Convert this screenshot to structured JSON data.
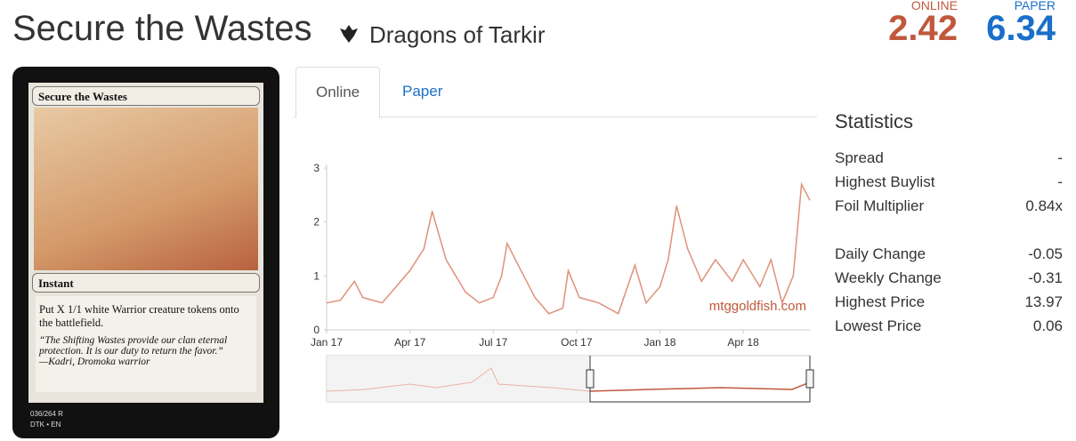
{
  "header": {
    "title": "Secure the Wastes",
    "set": "Dragons of Tarkir",
    "online_label": "ONLINE",
    "online_price": "2.42",
    "paper_label": "PAPER",
    "paper_price": "6.34"
  },
  "card": {
    "name": "Secure the Wastes",
    "type_line": "Instant",
    "rules": "Put X 1/1 white Warrior creature tokens onto the battlefield.",
    "flavor": "“The Shifting Wastes provide our clan eternal protection. It is our duty to return the favor.”",
    "attribution": "—Kadri, Dromoka warrior",
    "collector": "036/264 R",
    "set_line": "DTK • EN"
  },
  "tabs": [
    "Online",
    "Paper"
  ],
  "chart_data": {
    "type": "line",
    "annotation": "mtggoldfish.com",
    "color": "#e0907a",
    "x": [
      0,
      0.5,
      1,
      1.3,
      2,
      2.5,
      3,
      3.5,
      3.8,
      4.3,
      5,
      5.5,
      6,
      6.3,
      6.5,
      7,
      7.5,
      8,
      8.5,
      8.7,
      9.1,
      9.8,
      10.5,
      11.1,
      11.5,
      12,
      12.3,
      12.6,
      13,
      13.5,
      14,
      14.6,
      15,
      15.6,
      16,
      16.4,
      16.8,
      17.1,
      17.4
    ],
    "values": [
      0.5,
      0.55,
      0.9,
      0.6,
      0.5,
      0.8,
      1.1,
      1.5,
      2.2,
      1.3,
      0.7,
      0.5,
      0.6,
      1.0,
      1.6,
      1.1,
      0.6,
      0.3,
      0.4,
      1.1,
      0.6,
      0.5,
      0.3,
      1.2,
      0.5,
      0.8,
      1.3,
      2.3,
      1.5,
      0.9,
      1.3,
      0.9,
      1.3,
      0.8,
      1.3,
      0.5,
      1.0,
      2.7,
      2.4
    ],
    "xlim": [
      0,
      17.4
    ],
    "xticks": [
      {
        "value": 0,
        "label": "Jan 17"
      },
      {
        "value": 3,
        "label": "Apr 17"
      },
      {
        "value": 6,
        "label": "Jul 17"
      },
      {
        "value": 9,
        "label": "Oct 17"
      },
      {
        "value": 12,
        "label": "Jan 18"
      },
      {
        "value": 15,
        "label": "Apr 18"
      }
    ],
    "ylim": [
      0,
      3
    ],
    "yticks": [
      0,
      1,
      2,
      3
    ],
    "grid": false
  },
  "statistics": {
    "title": "Statistics",
    "rows": [
      [
        "Spread",
        "-"
      ],
      [
        "Highest Buylist",
        "-"
      ],
      [
        "Foil Multiplier",
        "0.84x"
      ],
      [
        "Daily Change",
        "-0.05"
      ],
      [
        "Weekly Change",
        "-0.31"
      ],
      [
        "Highest Price",
        "13.97"
      ],
      [
        "Lowest Price",
        "0.06"
      ]
    ]
  }
}
